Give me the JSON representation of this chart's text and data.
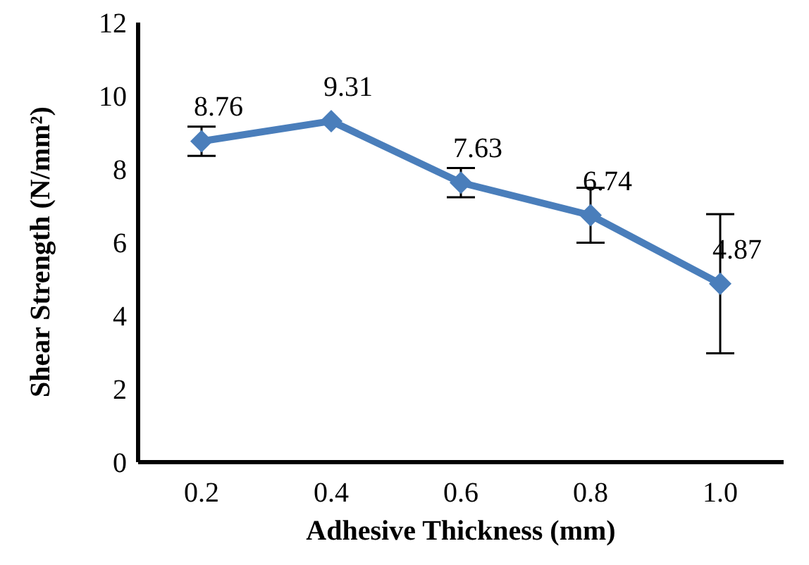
{
  "chart_data": {
    "type": "line",
    "xlabel": "Adhesive Thickness (mm)",
    "ylabel": "Shear Strength (N/mm²)",
    "categories": [
      "0.2",
      "0.4",
      "0.6",
      "0.8",
      "1.0"
    ],
    "series": [
      {
        "color": "#4a7ebb",
        "values": [
          8.76,
          9.31,
          7.63,
          6.74,
          4.87
        ],
        "errors": [
          0.4,
          null,
          0.4,
          0.75,
          1.9
        ]
      }
    ],
    "ylim": [
      0,
      12
    ],
    "yticks": [
      0,
      2,
      4,
      6,
      8,
      10,
      12
    ],
    "data_labels": true,
    "marker": "diamond",
    "line_style": "solid",
    "grid": false,
    "legend": false
  }
}
